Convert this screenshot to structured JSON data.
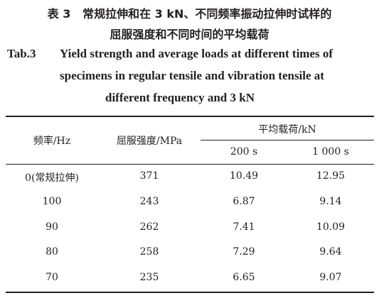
{
  "caption_cn": {
    "label": "表 3",
    "line1": "常规拉伸和在 3 kN、不同频率振动拉伸时试样的",
    "line2": "屈服强度和不同时间的平均载荷"
  },
  "caption_en": {
    "label": "Tab.3",
    "line1": "Yield strength and average loads at different times of",
    "line2": "specimens in regular tensile and vibration tensile at",
    "line3": "different frequency and 3 kN"
  },
  "table": {
    "headers": {
      "frequency": "频率/Hz",
      "yield_strength": "屈服强度/MPa",
      "average_load": "平均载荷/kN",
      "t200": "200 s",
      "t1000": "1 000 s"
    },
    "rows": [
      {
        "frequency": "0(常规拉伸)",
        "yield": "371",
        "load_200": "10.49",
        "load_1000": "12.95"
      },
      {
        "frequency": "100",
        "yield": "243",
        "load_200": "6.87",
        "load_1000": "9.14"
      },
      {
        "frequency": "90",
        "yield": "262",
        "load_200": "7.41",
        "load_1000": "10.09"
      },
      {
        "frequency": "80",
        "yield": "258",
        "load_200": "7.29",
        "load_1000": "9.64"
      },
      {
        "frequency": "70",
        "yield": "235",
        "load_200": "6.65",
        "load_1000": "9.07"
      }
    ]
  }
}
